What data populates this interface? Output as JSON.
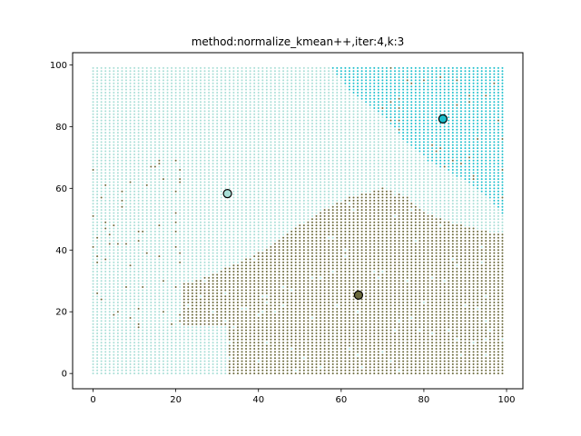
{
  "chart_data": {
    "type": "scatter",
    "title": "method:normalize_kmean++,iter:4,k:3",
    "xlabel": "",
    "ylabel": "",
    "xlim": [
      -4.95,
      103.95
    ],
    "ylim": [
      -4.95,
      103.95
    ],
    "xticks": [
      0,
      20,
      40,
      60,
      80,
      100
    ],
    "yticks": [
      0,
      20,
      40,
      60,
      80,
      100
    ],
    "grid": false,
    "colors": {
      "cluster_light": "#a8ded6",
      "cluster_cyan": "#1cbfcc",
      "cluster_olive": "#6b6a3c",
      "centroid_edge": "#000000"
    },
    "grid_points": {
      "x_range": [
        0,
        99
      ],
      "y_range": [
        0,
        99
      ],
      "step": 1
    },
    "centroids": [
      {
        "x": 32.5,
        "y": 58.3,
        "cluster": "light"
      },
      {
        "x": 84.6,
        "y": 82.5,
        "cluster": "cyan"
      },
      {
        "x": 64.2,
        "y": 25.4,
        "cluster": "olive"
      }
    ]
  }
}
